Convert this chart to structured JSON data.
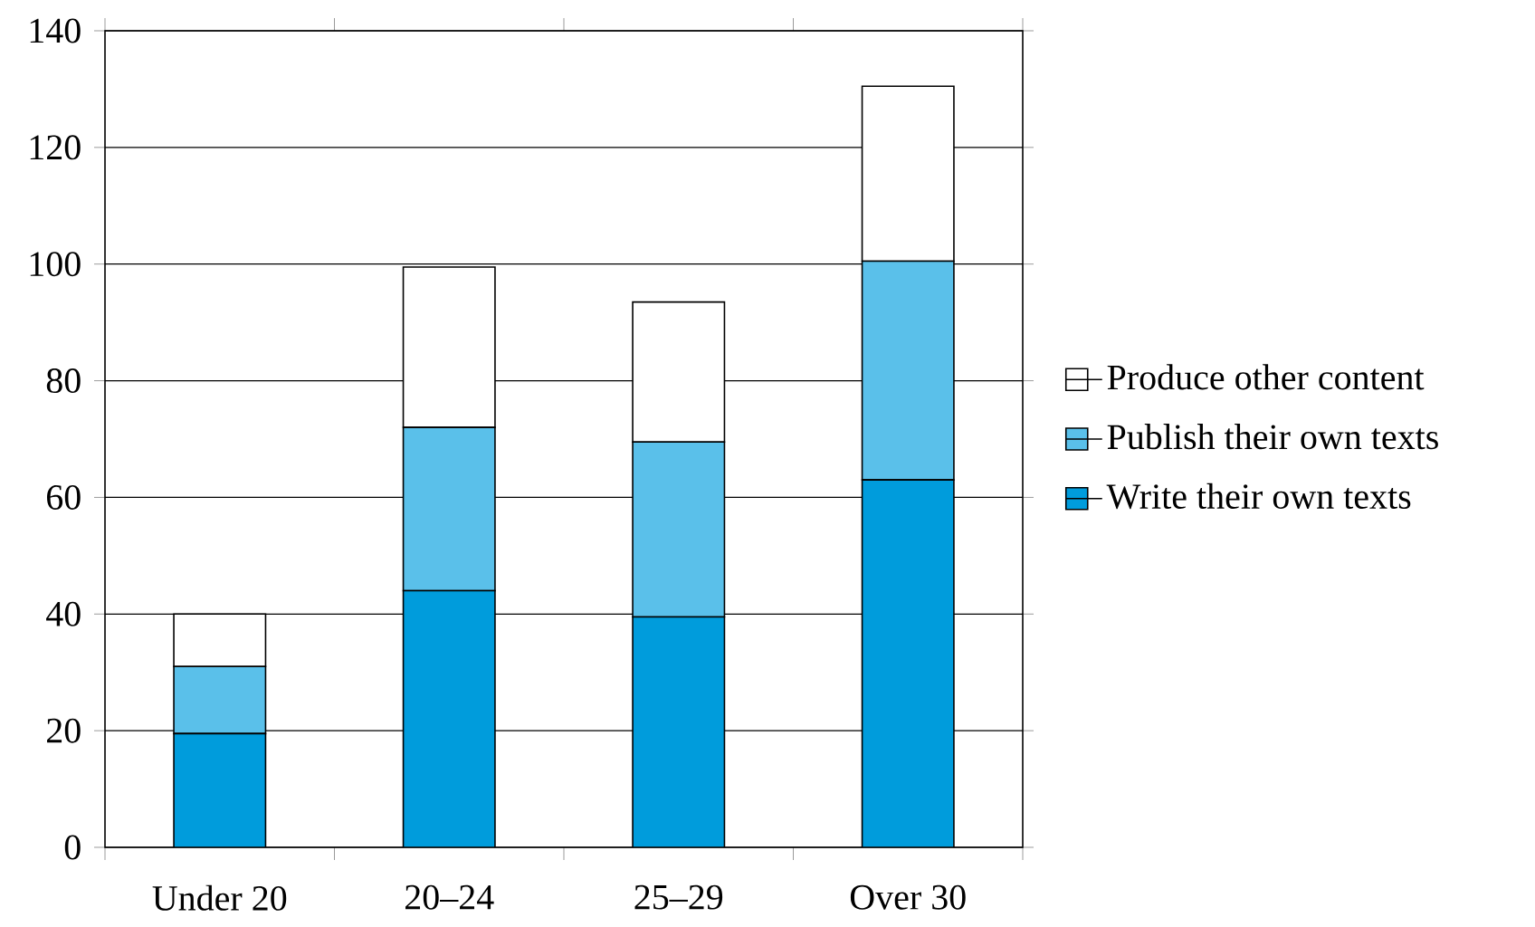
{
  "chart_data": {
    "type": "bar",
    "stacked": true,
    "categories": [
      "Under 20",
      "20–24",
      "25–29",
      "Over 30"
    ],
    "series": [
      {
        "name": "Write their own texts",
        "color": "#009cdc",
        "values": [
          19.5,
          44,
          39.5,
          63
        ]
      },
      {
        "name": "Publish their own texts",
        "color": "#5ac0ea",
        "values": [
          11.5,
          28,
          30,
          37.5
        ]
      },
      {
        "name": "Produce other content",
        "color": "#ffffff",
        "values": [
          9,
          27.5,
          24,
          30
        ]
      }
    ],
    "ylim": [
      0,
      140
    ],
    "yticks": [
      0,
      20,
      40,
      60,
      80,
      100,
      120,
      140
    ],
    "grid": "y",
    "legend": "right"
  }
}
